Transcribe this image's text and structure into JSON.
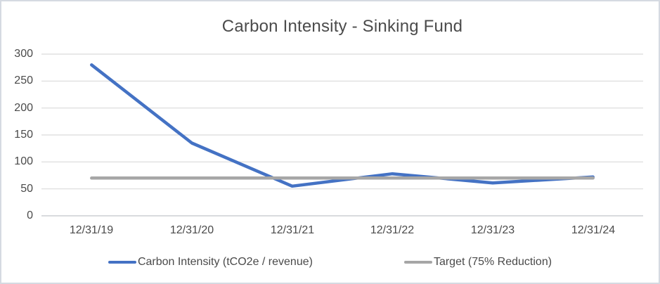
{
  "title": "Carbon Intensity - Sinking Fund",
  "colors": {
    "carbon_series": "#4472C4",
    "target_series": "#A6A6A6",
    "gridline": "#D9D9D9",
    "axis_line": "#C2C5C9",
    "text": "#4a4a4a",
    "border": "#d5dae2",
    "background": "#ffffff"
  },
  "chart_data": {
    "type": "line",
    "title": "Carbon Intensity - Sinking Fund",
    "categories": [
      "12/31/19",
      "12/31/20",
      "12/31/21",
      "12/31/22",
      "12/31/23",
      "12/31/24"
    ],
    "series": [
      {
        "name": "Carbon Intensity (tCO2e / revenue)",
        "color": "#4472C4",
        "values": [
          280,
          135,
          55,
          78,
          61,
          72
        ]
      },
      {
        "name": "Target (75% Reduction)",
        "color": "#A6A6A6",
        "values": [
          70,
          70,
          70,
          70,
          70,
          70
        ]
      }
    ],
    "xlabel": "",
    "ylabel": "",
    "ylim": [
      0,
      300
    ],
    "y_ticks": [
      300,
      250,
      200,
      150,
      100,
      50,
      0
    ],
    "grid": true,
    "legend_position": "bottom"
  }
}
